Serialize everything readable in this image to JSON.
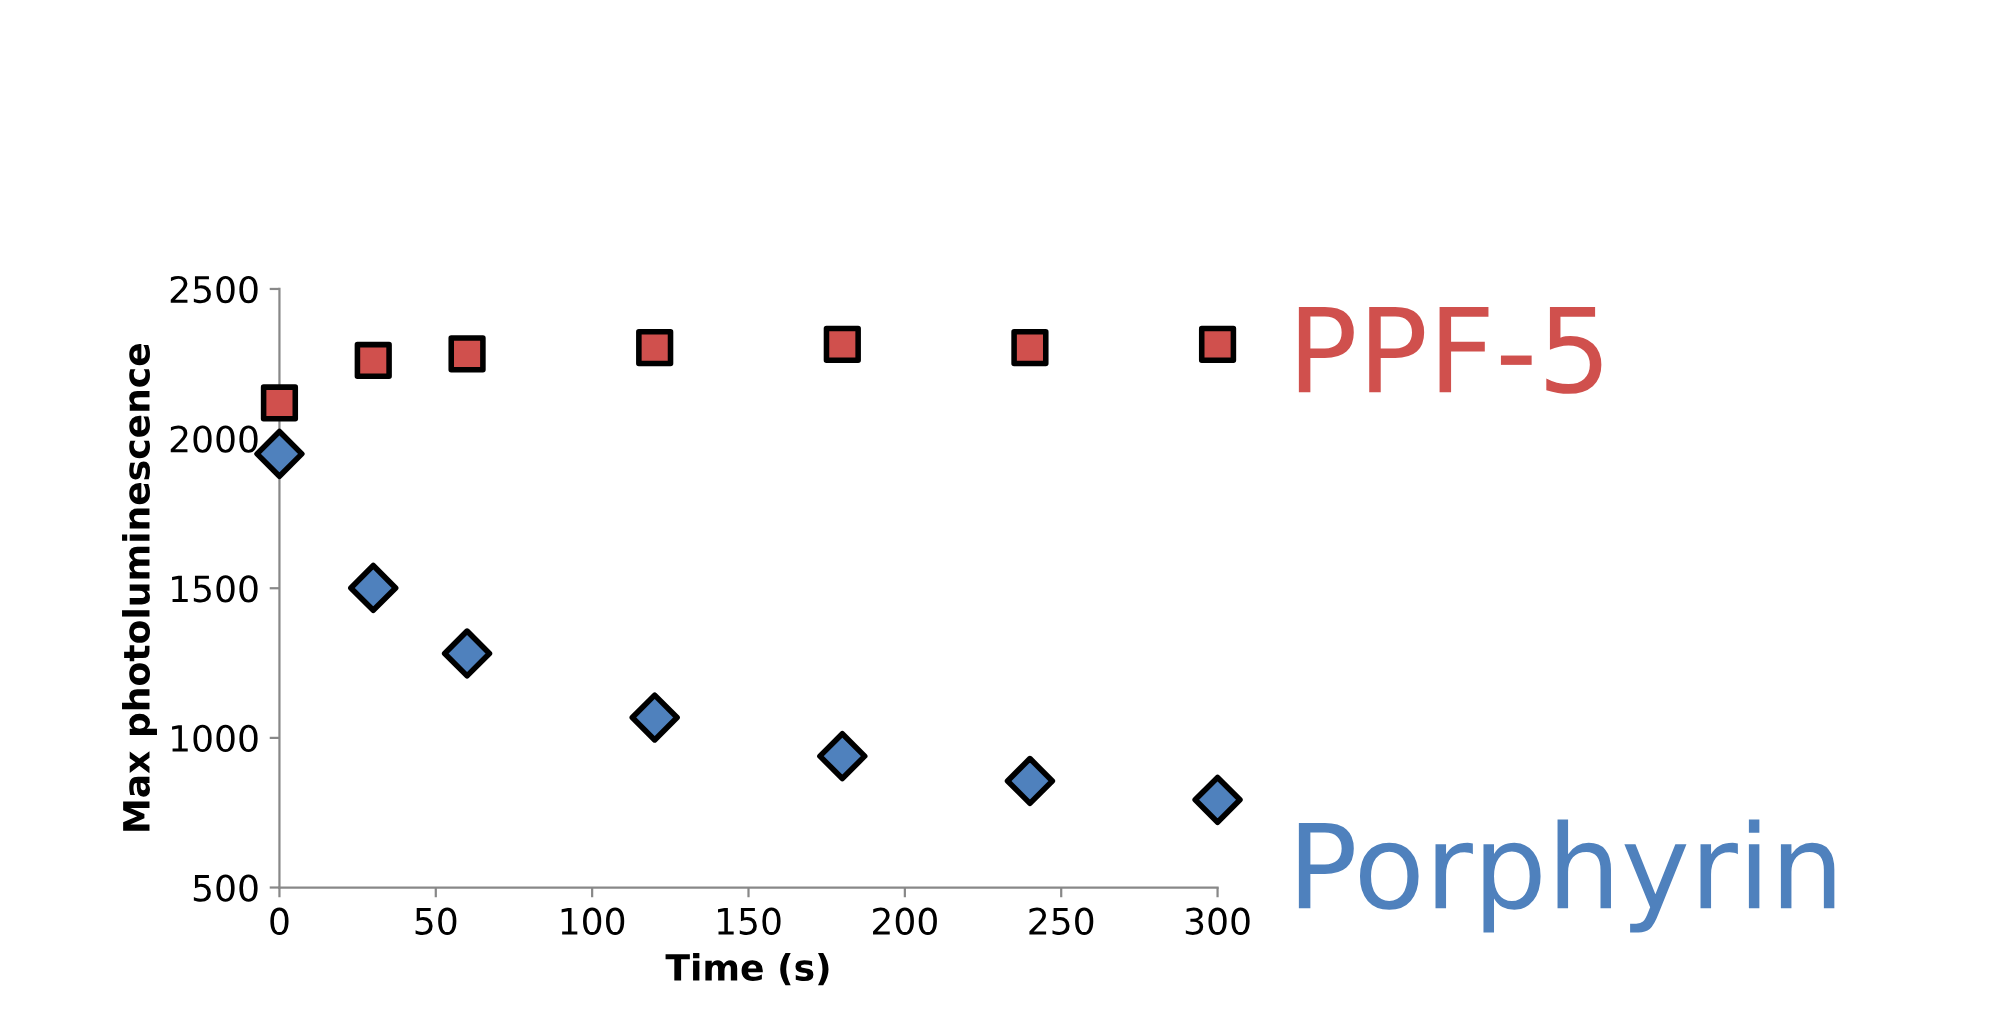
{
  "chart_data": {
    "type": "scatter",
    "xlabel": "Time (s)",
    "ylabel": "Max photoluminescence",
    "x": [
      0,
      30,
      60,
      120,
      180,
      240,
      300
    ],
    "series": [
      {
        "name": "PPF-5",
        "color": "#d0504d",
        "marker": "square",
        "values": [
          2119,
          2261,
          2283,
          2304,
          2315,
          2304,
          2315
        ]
      },
      {
        "name": "Porphyrin",
        "color": "#4f81bd",
        "marker": "diamond",
        "values": [
          1949,
          1501,
          1282,
          1068,
          939,
          856,
          793
        ]
      }
    ],
    "xlim": [
      0,
      300
    ],
    "xticks": [
      0,
      50,
      100,
      150,
      200,
      250,
      300
    ],
    "ylim": [
      500,
      2500
    ],
    "yticks": [
      500,
      1000,
      1500,
      2000,
      2500
    ],
    "grid": false,
    "legend": false
  }
}
